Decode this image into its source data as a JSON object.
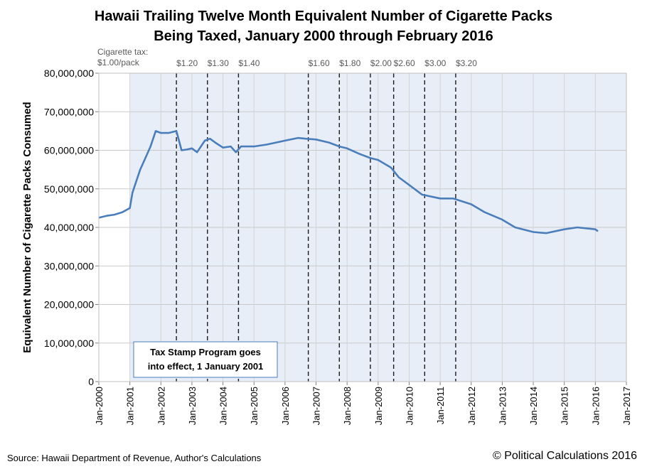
{
  "chart_data": {
    "type": "line",
    "title": "Hawaii Trailing Twelve Month Equivalent Number of Cigarette Packs",
    "subtitle": "Being Taxed, January 2000 through February 2016",
    "ylabel": "Equivalent Number of Cigarette Packs Consumed",
    "xlabel": "",
    "ylim": [
      0,
      80000000
    ],
    "xlim": [
      "2000-01",
      "2017-01"
    ],
    "y_ticks": [
      "0",
      "10,000,000",
      "20,000,000",
      "30,000,000",
      "40,000,000",
      "50,000,000",
      "60,000,000",
      "70,000,000",
      "80,000,000"
    ],
    "x_ticks": [
      "Jan-2000",
      "Jan-2001",
      "Jan-2002",
      "Jan-2003",
      "Jan-2004",
      "Jan-2005",
      "Jan-2006",
      "Jan-2007",
      "Jan-2008",
      "Jan-2009",
      "Jan-2010",
      "Jan-2011",
      "Jan-2012",
      "Jan-2013",
      "Jan-2014",
      "Jan-2015",
      "Jan-2016",
      "Jan-2017"
    ],
    "shaded_region": {
      "start": "2001-01",
      "end": "2017-01",
      "color": "#e8eef8"
    },
    "series_color": "#4a7ebb",
    "series": [
      {
        "x": [
          "2000-01",
          "2000-04",
          "2000-07",
          "2000-10",
          "2001-01",
          "2001-02",
          "2001-03",
          "2001-05",
          "2001-07",
          "2001-09",
          "2001-11",
          "2002-01",
          "2002-04",
          "2002-07",
          "2002-09",
          "2002-11",
          "2003-01",
          "2003-03",
          "2003-06",
          "2003-08",
          "2003-10",
          "2004-01",
          "2004-04",
          "2004-06",
          "2004-08",
          "2005-01",
          "2005-06",
          "2006-01",
          "2006-06",
          "2006-09",
          "2007-01",
          "2007-06",
          "2007-10",
          "2008-01",
          "2008-06",
          "2008-10",
          "2009-01",
          "2009-06",
          "2009-09",
          "2010-01",
          "2010-06",
          "2011-01",
          "2011-06",
          "2012-01",
          "2012-06",
          "2013-01",
          "2013-06",
          "2014-01",
          "2014-06",
          "2015-01",
          "2015-06",
          "2016-01",
          "2016-02"
        ],
        "values": [
          42500000,
          43000000,
          43300000,
          43900000,
          45000000,
          49000000,
          51000000,
          55000000,
          58000000,
          61000000,
          65000000,
          64500000,
          64500000,
          65000000,
          60000000,
          60200000,
          60500000,
          59500000,
          62500000,
          63000000,
          62000000,
          60700000,
          61000000,
          59500000,
          61000000,
          61000000,
          61500000,
          62500000,
          63200000,
          63000000,
          62800000,
          62000000,
          61000000,
          60500000,
          59000000,
          58000000,
          57500000,
          55500000,
          53000000,
          51000000,
          48500000,
          47500000,
          47500000,
          46000000,
          44000000,
          42000000,
          40000000,
          38800000,
          38500000,
          39500000,
          40000000,
          39500000,
          39000000
        ]
      }
    ],
    "events": [
      {
        "date": "2002-07",
        "label": "$1.20"
      },
      {
        "date": "2003-07",
        "label": "$1.30"
      },
      {
        "date": "2004-07",
        "label": "$1.40"
      },
      {
        "date": "2006-10",
        "label": "$1.60"
      },
      {
        "date": "2007-10",
        "label": "$1.80"
      },
      {
        "date": "2008-10",
        "label": "$2.00"
      },
      {
        "date": "2009-07",
        "label": "$2.60"
      },
      {
        "date": "2010-07",
        "label": "$3.00"
      },
      {
        "date": "2011-07",
        "label": "$3.20"
      }
    ],
    "tax_header": [
      "Cigarette tax:",
      "$1.00/pack"
    ],
    "annotation": [
      "Tax Stamp Program goes",
      "into effect, 1 January 2001"
    ]
  },
  "footer": {
    "source": "Source: Hawaii Department of Revenue, Author's Calculations",
    "copyright": "© Political Calculations 2016"
  }
}
